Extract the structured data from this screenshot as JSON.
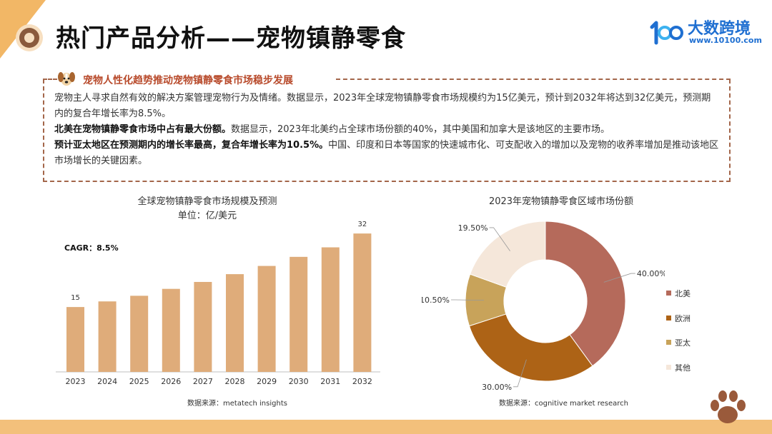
{
  "page": {
    "title": "热门产品分析——宠物镇静零食"
  },
  "logo": {
    "brand": "大数跨境",
    "url": "www.10100.com"
  },
  "info": {
    "heading": "宠物人性化趋势推动宠物镇静零食市场稳步发展",
    "p1": "宠物主人寻求自然有效的解决方案管理宠物行为及情绪。数据显示，2023年全球宠物镇静零食市场规模约为15亿美元，预计到2032年将达到32亿美元，预测期内的复合年增长率为8.5%。",
    "p2_bold": "北美在宠物镇静零食市场中占有最大份额。",
    "p2_rest": "数据显示，2023年北美约占全球市场份额的40%，其中美国和加拿大是该地区的主要市场。",
    "p3_bold": "预计亚太地区在预测期内的增长率最高，复合年增长率为10.5%。",
    "p3_rest": "中国、印度和日本等国家的快速城市化、可支配收入的增加以及宠物的收养率增加是推动该地区市场增长的关键因素。"
  },
  "chart_data": [
    {
      "type": "bar",
      "title": "全球宠物镇静零食市场规模及预测",
      "subtitle": "单位：亿/美元",
      "annotation": "CAGR：8.5%",
      "categories": [
        "2023",
        "2024",
        "2025",
        "2026",
        "2027",
        "2028",
        "2029",
        "2030",
        "2031",
        "2032"
      ],
      "values": [
        15,
        16.3,
        17.6,
        19.2,
        20.8,
        22.6,
        24.5,
        26.6,
        28.8,
        32
      ],
      "data_labels": [
        "15",
        "",
        "",
        "",
        "",
        "",
        "",
        "",
        "",
        "32"
      ],
      "color": "#dfac7a",
      "ylim": [
        0,
        34
      ],
      "grid": false,
      "source": "数据来源：metatech insights"
    },
    {
      "type": "pie",
      "title": "2023年宠物镇静零食区域市场份额",
      "slices": [
        {
          "label": "北美",
          "value": 40.0,
          "value_label": "40.00%",
          "color": "#b56a5b"
        },
        {
          "label": "欧洲",
          "value": 30.0,
          "value_label": "30.00%",
          "color": "#ad6316"
        },
        {
          "label": "亚太",
          "value": 10.5,
          "value_label": "10.50%",
          "color": "#c8a35a"
        },
        {
          "label": "其他",
          "value": 19.5,
          "value_label": "19.50%",
          "color": "#f5e7da"
        }
      ],
      "legend_position": "right",
      "source": "数据来源：cognitive market research"
    }
  ]
}
